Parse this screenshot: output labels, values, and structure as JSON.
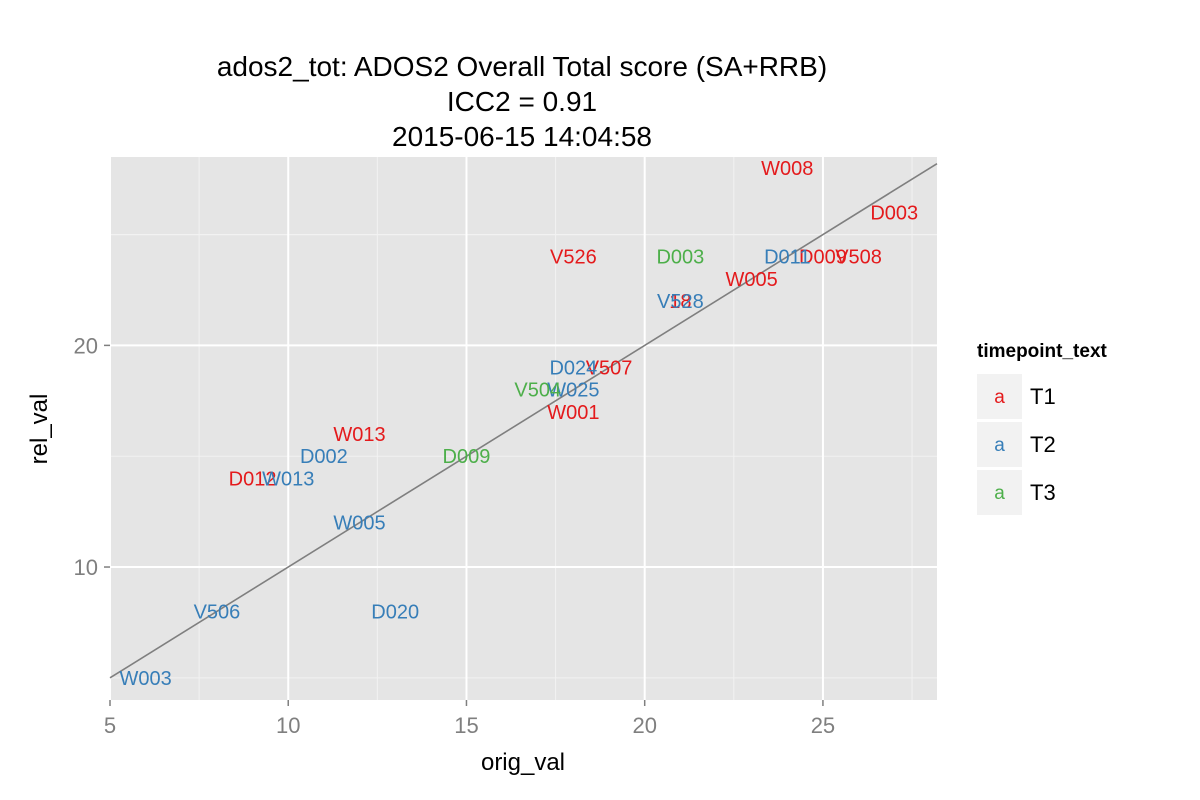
{
  "chart_data": {
    "type": "scatter",
    "title": [
      "ados2_tot: ADOS2 Overall Total score (SA+RRB)",
      "ICC2 = 0.91",
      "2015-06-15 14:04:58"
    ],
    "xlabel": "orig_val",
    "ylabel": "rel_val",
    "xlim": [
      5,
      28.2
    ],
    "ylim": [
      4,
      28.5
    ],
    "x_ticks": [
      5,
      10,
      15,
      20,
      25
    ],
    "y_ticks": [
      10,
      20
    ],
    "grid": true,
    "reference_line": {
      "from": [
        5,
        5
      ],
      "to": [
        28.2,
        28.2
      ]
    },
    "legend": {
      "title": "timepoint_text",
      "position": "right",
      "key_glyph": "a",
      "entries": [
        {
          "label": "T1",
          "color": "#e41a1c"
        },
        {
          "label": "T2",
          "color": "#377eb8"
        },
        {
          "label": "T3",
          "color": "#4daf4a"
        }
      ]
    },
    "series": [
      {
        "name": "T1",
        "color": "#e41a1c",
        "points": [
          {
            "label": "W008",
            "x": 24,
            "y": 28
          },
          {
            "label": "D003",
            "x": 27,
            "y": 26
          },
          {
            "label": "V526",
            "x": 18,
            "y": 24
          },
          {
            "label": "D009",
            "x": 25,
            "y": 24
          },
          {
            "label": "V508",
            "x": 26,
            "y": 24
          },
          {
            "label": "W005",
            "x": 23,
            "y": 23
          },
          {
            "label": "18",
            "x": 21,
            "y": 22
          },
          {
            "label": "V507",
            "x": 19,
            "y": 19
          },
          {
            "label": "W001",
            "x": 18,
            "y": 17
          },
          {
            "label": "W013",
            "x": 12,
            "y": 16
          },
          {
            "label": "D012",
            "x": 9,
            "y": 14
          }
        ]
      },
      {
        "name": "T2",
        "color": "#377eb8",
        "points": [
          {
            "label": "D011",
            "x": 24,
            "y": 24
          },
          {
            "label": "V528",
            "x": 21,
            "y": 22
          },
          {
            "label": "D024",
            "x": 18,
            "y": 19
          },
          {
            "label": "W025",
            "x": 18,
            "y": 18
          },
          {
            "label": "D002",
            "x": 11,
            "y": 15
          },
          {
            "label": "W013",
            "x": 10,
            "y": 14
          },
          {
            "label": "W005",
            "x": 12,
            "y": 12
          },
          {
            "label": "V506",
            "x": 8,
            "y": 8
          },
          {
            "label": "D020",
            "x": 13,
            "y": 8
          },
          {
            "label": "W003",
            "x": 6,
            "y": 5
          }
        ]
      },
      {
        "name": "T3",
        "color": "#4daf4a",
        "points": [
          {
            "label": "D003",
            "x": 21,
            "y": 24
          },
          {
            "label": "V504",
            "x": 17,
            "y": 18
          },
          {
            "label": "D009",
            "x": 15,
            "y": 15
          }
        ]
      }
    ]
  }
}
